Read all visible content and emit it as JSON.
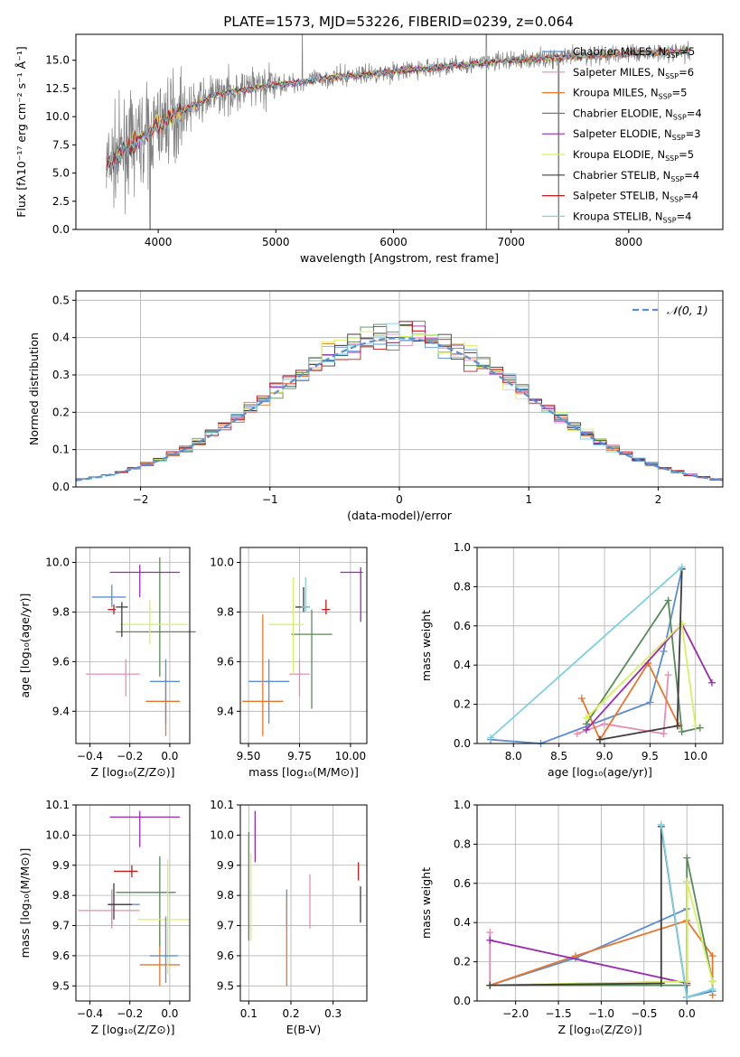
{
  "figure_title": "PLATE=1573, MJD=53226, FIBERID=0239, z=0.064",
  "model_series": [
    {
      "name": "Chabrier MILES",
      "nssp": "5",
      "color": "#5b8fd1"
    },
    {
      "name": "Salpeter MILES",
      "nssp": "6",
      "color": "#e88cb3"
    },
    {
      "name": "Kroupa MILES",
      "nssp": "5",
      "color": "#e8772e"
    },
    {
      "name": "Chabrier ELODIE",
      "nssp": "4",
      "color": "#5a8a5a"
    },
    {
      "name": "Salpeter ELODIE",
      "nssp": "3",
      "color": "#9a2bb0"
    },
    {
      "name": "Kroupa ELODIE",
      "nssp": "5",
      "color": "#d6f060"
    },
    {
      "name": "Chabrier STELIB",
      "nssp": "4",
      "color": "#3d3d3d"
    },
    {
      "name": "Salpeter STELIB",
      "nssp": "4",
      "color": "#c41a1a"
    },
    {
      "name": "Kroupa STELIB",
      "nssp": "4",
      "color": "#7fd0e0"
    }
  ],
  "chart_data": [
    {
      "id": "spectrum",
      "type": "line",
      "xlabel": "wavelength [Angstrom, rest frame]",
      "ylabel": "Flux [fλ10⁻¹⁷ erg cm⁻² s⁻¹ Å⁻¹]",
      "xlim": [
        3300,
        8800
      ],
      "ylim": [
        0,
        17.3
      ],
      "xticks": [
        4000,
        5000,
        6000,
        7000,
        8000
      ],
      "yticks": [
        0.0,
        2.5,
        5.0,
        7.5,
        10.0,
        12.5,
        15.0
      ],
      "data_color": "#808080",
      "continuum": {
        "x": [
          3550,
          3700,
          3900,
          4100,
          4300,
          4500,
          5000,
          5500,
          6000,
          6500,
          7000,
          7500,
          8000,
          8500
        ],
        "y": [
          5.5,
          7.0,
          8.5,
          10.0,
          11.0,
          12.0,
          12.8,
          13.5,
          14.0,
          14.5,
          15.0,
          15.3,
          15.6,
          15.8
        ]
      },
      "grid": false,
      "legend_position": "lower-right"
    },
    {
      "id": "residuals",
      "type": "histogram",
      "xlabel": "(data-model)/error",
      "ylabel": "Normed distribution",
      "xlim": [
        -2.5,
        2.5
      ],
      "ylim": [
        0,
        0.525
      ],
      "xticks": [
        -2,
        -1,
        0,
        1,
        2
      ],
      "yticks": [
        0.0,
        0.1,
        0.2,
        0.3,
        0.4,
        0.5
      ],
      "normal_label": "𝒩(0, 1)",
      "normal_color": "#5b8fd1",
      "bin_width": 0.1,
      "grid": true,
      "legend_position": "upper-right"
    },
    {
      "id": "age-vs-z",
      "type": "errorbar",
      "xlabel": "Z [log₁₀(Z/Z⊙)]",
      "ylabel": "age  [log₁₀(age/yr)]",
      "xlim": [
        -0.47,
        0.1
      ],
      "ylim": [
        9.27,
        10.06
      ],
      "xticks": [
        -0.4,
        -0.2,
        0.0
      ],
      "xticklabels": [
        "−0.4",
        "−0.2",
        "0.0"
      ],
      "yticks": [
        9.4,
        9.6,
        9.8,
        10.0
      ],
      "yticklabels": [
        "9.4",
        "9.6",
        "9.8",
        "10.0"
      ],
      "points": [
        {
          "x": -0.29,
          "y": 9.86,
          "xerr": [
            0.1,
            0.07
          ],
          "yerr": [
            0.04,
            0.05
          ],
          "color": 0
        },
        {
          "x": -0.22,
          "y": 9.55,
          "xerr": [
            0.2,
            0.07
          ],
          "yerr": [
            0.09,
            0.06
          ],
          "color": 1
        },
        {
          "x": -0.02,
          "y": 9.44,
          "xerr": [
            0.1,
            0.07
          ],
          "yerr": [
            0.14,
            0.09
          ],
          "color": 2
        },
        {
          "x": -0.05,
          "y": 9.72,
          "xerr": [
            0.22,
            0.18
          ],
          "yerr": [
            0.18,
            0.3
          ],
          "color": 3
        },
        {
          "x": -0.15,
          "y": 9.96,
          "xerr": [
            0.15,
            0.2
          ],
          "yerr": [
            0.1,
            0.03
          ],
          "color": 4
        },
        {
          "x": -0.1,
          "y": 9.75,
          "xerr": [
            0.15,
            0.19
          ],
          "yerr": [
            0.08,
            0.1
          ],
          "color": 5
        },
        {
          "x": -0.24,
          "y": 9.82,
          "xerr": [
            0.03,
            0.03
          ],
          "yerr": [
            0.12,
            0.02
          ],
          "color": 6
        },
        {
          "x": -0.28,
          "y": 9.81,
          "xerr": [
            0.03,
            0.01
          ],
          "yerr": [
            0.02,
            0.02
          ],
          "color": 7
        },
        {
          "x": -0.02,
          "y": 9.52,
          "xerr": [
            0.08,
            0.07
          ],
          "yerr": [
            0.17,
            0.09
          ],
          "color": 0
        }
      ],
      "grid": true
    },
    {
      "id": "age-vs-mass",
      "type": "errorbar",
      "xlabel": "mass [log₁₀(M/M⊙)]",
      "ylabel": "",
      "xlim": [
        9.46,
        10.08
      ],
      "ylim": [
        9.27,
        10.06
      ],
      "xticks": [
        9.5,
        9.75,
        10.0
      ],
      "xticklabels": [
        "9.50",
        "9.75",
        "10.00"
      ],
      "yticks": [
        9.4,
        9.6,
        9.8,
        10.0
      ],
      "yticklabels": [
        "9.4",
        "9.6",
        "9.8",
        "10.0"
      ],
      "points": [
        {
          "x": 9.6,
          "y": 9.52,
          "xerr": [
            0.1,
            0.1
          ],
          "yerr": [
            0.17,
            0.09
          ],
          "color": 0
        },
        {
          "x": 9.75,
          "y": 9.55,
          "xerr": [
            0.05,
            0.05
          ],
          "yerr": [
            0.09,
            0.06
          ],
          "color": 1
        },
        {
          "x": 9.57,
          "y": 9.44,
          "xerr": [
            0.1,
            0.1
          ],
          "yerr": [
            0.14,
            0.35
          ],
          "color": 2
        },
        {
          "x": 9.81,
          "y": 9.71,
          "xerr": [
            0.1,
            0.1
          ],
          "yerr": [
            0.3,
            0.1
          ],
          "color": 3
        },
        {
          "x": 10.05,
          "y": 9.96,
          "xerr": [
            0.1,
            0.01
          ],
          "yerr": [
            0.2,
            0.02
          ],
          "color": 4
        },
        {
          "x": 9.72,
          "y": 9.75,
          "xerr": [
            0.12,
            0.05
          ],
          "yerr": [
            0.2,
            0.19
          ],
          "color": 5
        },
        {
          "x": 9.77,
          "y": 9.82,
          "xerr": [
            0.04,
            0.03
          ],
          "yerr": [
            0.02,
            0.08
          ],
          "color": 6
        },
        {
          "x": 9.88,
          "y": 9.81,
          "xerr": [
            0.02,
            0.02
          ],
          "yerr": [
            0.02,
            0.04
          ],
          "color": 7
        },
        {
          "x": 9.78,
          "y": 9.82,
          "xerr": [
            0.02,
            0.02
          ],
          "yerr": [
            0.02,
            0.12
          ],
          "color": 8
        }
      ],
      "grid": true
    },
    {
      "id": "mass-weight-vs-age",
      "type": "line",
      "xlabel": "age  [log₁₀(age/yr)]",
      "ylabel": "mass weight",
      "xlim": [
        7.6,
        10.3
      ],
      "ylim": [
        0,
        1
      ],
      "xticks": [
        8.0,
        8.5,
        9.0,
        9.5,
        10.0
      ],
      "xticklabels": [
        "8.0",
        "8.5",
        "9.0",
        "9.5",
        "10.0"
      ],
      "yticks": [
        0,
        0.2,
        0.4,
        0.6,
        0.8,
        1.0
      ],
      "yticklabels": [
        "0.0",
        "0.2",
        "0.4",
        "0.6",
        "0.8",
        "1.0"
      ],
      "series": [
        {
          "color": 0,
          "x": [
            7.75,
            8.3,
            9.5,
            9.65,
            9.85
          ],
          "y": [
            0.02,
            0.0,
            0.21,
            0.47,
            0.89
          ]
        },
        {
          "color": 1,
          "x": [
            8.7,
            9.0,
            9.65,
            9.7
          ],
          "y": [
            0.05,
            0.1,
            0.05,
            0.35
          ]
        },
        {
          "color": 2,
          "x": [
            8.75,
            8.95,
            9.48,
            9.82
          ],
          "y": [
            0.23,
            0.02,
            0.41,
            0.09
          ]
        },
        {
          "color": 3,
          "x": [
            8.8,
            9.7,
            9.85,
            10.05
          ],
          "y": [
            0.1,
            0.73,
            0.06,
            0.08
          ]
        },
        {
          "color": 4,
          "x": [
            8.8,
            9.85,
            10.18
          ],
          "y": [
            0.07,
            0.61,
            0.31
          ]
        },
        {
          "color": 5,
          "x": [
            8.8,
            9.85,
            10.0
          ],
          "y": [
            0.13,
            0.61,
            0.09
          ]
        },
        {
          "color": 6,
          "x": [
            8.95,
            9.8,
            9.85
          ],
          "y": [
            0.02,
            0.09,
            0.89
          ]
        },
        {
          "color": 8,
          "x": [
            7.75,
            9.85
          ],
          "y": [
            0.03,
            0.9
          ]
        }
      ],
      "grid": true
    },
    {
      "id": "mass-vs-z",
      "type": "errorbar",
      "xlabel": "Z [log₁₀(Z/Z⊙)]",
      "ylabel": "mass [log₁₀(M/M⊙)]",
      "xlim": [
        -0.47,
        0.1
      ],
      "ylim": [
        9.45,
        10.1
      ],
      "xticks": [
        -0.4,
        -0.2,
        0.0
      ],
      "xticklabels": [
        "−0.4",
        "−0.2",
        "0.0"
      ],
      "yticks": [
        9.5,
        9.6,
        9.7,
        9.8,
        9.9,
        10.0,
        10.1
      ],
      "yticklabels": [
        "9.5",
        "9.6",
        "9.7",
        "9.8",
        "9.9",
        "10.0",
        "10.1"
      ],
      "points": [
        {
          "x": -0.29,
          "y": 9.77,
          "xerr": [
            0.02,
            0.14
          ],
          "yerr": [
            0.07,
            0.05
          ],
          "color": 0
        },
        {
          "x": -0.29,
          "y": 9.75,
          "xerr": [
            0.17,
            0.14
          ],
          "yerr": [
            0.06,
            0.07
          ],
          "color": 1
        },
        {
          "x": -0.05,
          "y": 9.57,
          "xerr": [
            0.1,
            0.1
          ],
          "yerr": [
            0.07,
            0.15
          ],
          "color": 2
        },
        {
          "x": -0.05,
          "y": 9.81,
          "xerr": [
            0.22,
            0.08
          ],
          "yerr": [
            0.18,
            0.12
          ],
          "color": 3
        },
        {
          "x": -0.15,
          "y": 10.06,
          "xerr": [
            0.15,
            0.2
          ],
          "yerr": [
            0.1,
            0.02
          ],
          "color": 4
        },
        {
          "x": -0.01,
          "y": 9.72,
          "xerr": [
            0.15,
            0.11
          ],
          "yerr": [
            0.18,
            0.2
          ],
          "color": 5
        },
        {
          "x": -0.28,
          "y": 9.77,
          "xerr": [
            0.03,
            0.09
          ],
          "yerr": [
            0.05,
            0.07
          ],
          "color": 6
        },
        {
          "x": -0.19,
          "y": 9.88,
          "xerr": [
            0.09,
            0.03
          ],
          "yerr": [
            0.02,
            0.02
          ],
          "color": 7
        },
        {
          "x": -0.02,
          "y": 9.6,
          "xerr": [
            0.08,
            0.06
          ],
          "yerr": [
            0.09,
            0.13
          ],
          "color": 0
        }
      ],
      "grid": true
    },
    {
      "id": "mass-vs-ebv",
      "type": "errorbar",
      "xlabel": "E(B-V)",
      "ylabel": "",
      "xlim": [
        0.08,
        0.38
      ],
      "ylim": [
        9.45,
        10.1
      ],
      "xticks": [
        0.1,
        0.2,
        0.3
      ],
      "xticklabels": [
        "0.1",
        "0.2",
        "0.3"
      ],
      "yticks": [
        9.5,
        9.6,
        9.7,
        9.8,
        9.9,
        10.0,
        10.1
      ],
      "yticklabels": [
        "9.5",
        "9.6",
        "9.7",
        "9.8",
        "9.9",
        "10.0",
        "10.1"
      ],
      "points": [
        {
          "x": 0.19,
          "y": 9.77,
          "xerr": [
            0,
            0
          ],
          "yerr": [
            0.07,
            0.05
          ],
          "color": 0
        },
        {
          "x": 0.245,
          "y": 9.75,
          "xerr": [
            0,
            0
          ],
          "yerr": [
            0.06,
            0.12
          ],
          "color": 1
        },
        {
          "x": 0.19,
          "y": 9.64,
          "xerr": [
            0,
            0
          ],
          "yerr": [
            0.14,
            0.15
          ],
          "color": 2
        },
        {
          "x": 0.1,
          "y": 9.83,
          "xerr": [
            0,
            0
          ],
          "yerr": [
            0.18,
            0.18
          ],
          "color": 3
        },
        {
          "x": 0.115,
          "y": 10.01,
          "xerr": [
            0,
            0
          ],
          "yerr": [
            0.1,
            0.07
          ],
          "color": 4
        },
        {
          "x": 0.105,
          "y": 9.84,
          "xerr": [
            0,
            0
          ],
          "yerr": [
            0.19,
            0.1
          ],
          "color": 5
        },
        {
          "x": 0.365,
          "y": 9.76,
          "xerr": [
            0,
            0
          ],
          "yerr": [
            0.05,
            0.07
          ],
          "color": 6
        },
        {
          "x": 0.36,
          "y": 9.88,
          "xerr": [
            0,
            0
          ],
          "yerr": [
            0.03,
            0.03
          ],
          "color": 7
        }
      ],
      "grid": true
    },
    {
      "id": "mass-weight-vs-z",
      "type": "line",
      "xlabel": "Z [log₁₀(Z/Z⊙)]",
      "ylabel": "mass weight",
      "xlim": [
        -2.45,
        0.42
      ],
      "ylim": [
        0,
        1
      ],
      "xticks": [
        -2.0,
        -1.5,
        -1.0,
        -0.5,
        0.0
      ],
      "xticklabels": [
        "−2.0",
        "−1.5",
        "−1.0",
        "−0.5",
        "0.0"
      ],
      "yticks": [
        0,
        0.2,
        0.4,
        0.6,
        0.8,
        1.0
      ],
      "yticklabels": [
        "0.0",
        "0.2",
        "0.4",
        "0.6",
        "0.8",
        "1.0"
      ],
      "series": [
        {
          "color": 0,
          "x": [
            -2.3,
            -1.3,
            0.0,
            0.0,
            0.3
          ],
          "y": [
            0.08,
            0.22,
            0.47,
            0.02,
            0.05
          ]
        },
        {
          "color": 1,
          "x": [
            -2.3,
            -2.3,
            0.0
          ],
          "y": [
            0.35,
            0.08,
            0.1
          ]
        },
        {
          "color": 2,
          "x": [
            -2.3,
            -1.3,
            0.0,
            0.3,
            0.3
          ],
          "y": [
            0.08,
            0.23,
            0.41,
            0.23,
            0.03
          ]
        },
        {
          "color": 3,
          "x": [
            -2.3,
            0.0,
            0.0,
            0.3
          ],
          "y": [
            0.08,
            0.08,
            0.73,
            0.1
          ]
        },
        {
          "color": 4,
          "x": [
            -2.3,
            0.0,
            0.0
          ],
          "y": [
            0.31,
            0.09,
            0.61
          ]
        },
        {
          "color": 5,
          "x": [
            -2.3,
            0.0,
            0.0,
            0.3
          ],
          "y": [
            0.08,
            0.1,
            0.61,
            0.1
          ]
        },
        {
          "color": 6,
          "x": [
            -2.3,
            -0.3,
            -0.3,
            0.0
          ],
          "y": [
            0.08,
            0.09,
            0.89,
            0.02
          ]
        },
        {
          "color": 8,
          "x": [
            -0.3,
            0.0,
            0.3
          ],
          "y": [
            0.9,
            0.02,
            0.06
          ]
        }
      ],
      "grid": true
    }
  ]
}
